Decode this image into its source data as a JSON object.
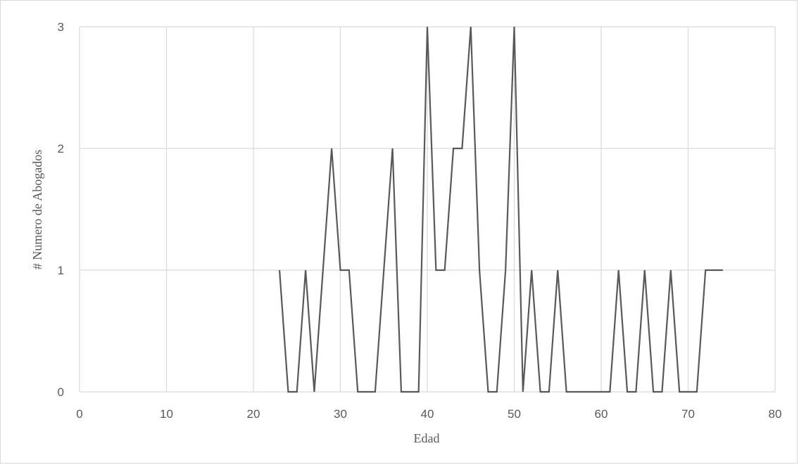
{
  "chart_data": {
    "type": "line",
    "title": "",
    "xlabel": "Edad",
    "ylabel": "# Numero de Abogados",
    "xlim": [
      0,
      80
    ],
    "ylim": [
      0,
      3
    ],
    "x_ticks": [
      "0",
      "10",
      "20",
      "30",
      "40",
      "50",
      "60",
      "70",
      "80"
    ],
    "y_ticks": [
      "0",
      "1",
      "2",
      "3"
    ],
    "grid": true,
    "legend": "none",
    "colors": {
      "line": "#595959",
      "grid": "#d9d9d9",
      "text": "#595959"
    },
    "series": [
      {
        "x": [
          23,
          24,
          25,
          26,
          27,
          28,
          29,
          30,
          31,
          32,
          33,
          34,
          35,
          36,
          37,
          38,
          39,
          40,
          41,
          42,
          43,
          44,
          45,
          46,
          47,
          48,
          49,
          50,
          51,
          52,
          53,
          54,
          55,
          56,
          57,
          58,
          59,
          60,
          61,
          62,
          63,
          64,
          65,
          66,
          67,
          68,
          69,
          70,
          71,
          72,
          73,
          74
        ],
        "values": [
          1,
          0,
          0,
          1,
          0,
          1,
          2,
          1,
          1,
          0,
          0,
          0,
          1,
          2,
          0,
          0,
          0,
          3,
          1,
          1,
          2,
          2,
          3,
          1,
          0,
          0,
          1,
          3,
          0,
          1,
          0,
          0,
          1,
          0,
          0,
          0,
          0,
          0,
          0,
          1,
          0,
          0,
          1,
          0,
          0,
          1,
          0,
          0,
          0,
          1,
          1,
          1
        ]
      }
    ]
  }
}
